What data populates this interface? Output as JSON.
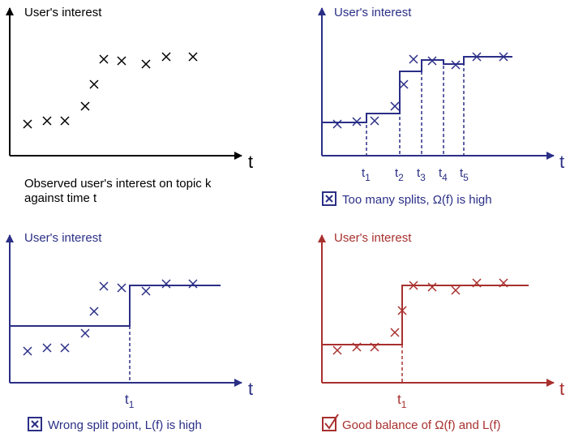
{
  "panels": [
    {
      "y_label": "User's interest",
      "x_label": "t",
      "caption": [
        "Observed user's interest on topic k",
        "against time t"
      ]
    },
    {
      "y_label": "User's interest",
      "x_label": "t",
      "splits": [
        {
          "t": "t",
          "sub": "1"
        },
        {
          "t": "t",
          "sub": "2"
        },
        {
          "t": "t",
          "sub": "3"
        },
        {
          "t": "t",
          "sub": "4"
        },
        {
          "t": "t",
          "sub": "5"
        }
      ],
      "caption": "Too many splits, Ω(f) is high"
    },
    {
      "y_label": "User's interest",
      "x_label": "t",
      "splits": [
        {
          "t": "t",
          "sub": "1"
        }
      ],
      "caption": "Wrong split point, L(f) is high"
    },
    {
      "y_label": "User's interest",
      "x_label": "t",
      "splits": [
        {
          "t": "t",
          "sub": "1"
        }
      ],
      "caption": "Good balance of Ω(f) and L(f)"
    }
  ]
}
